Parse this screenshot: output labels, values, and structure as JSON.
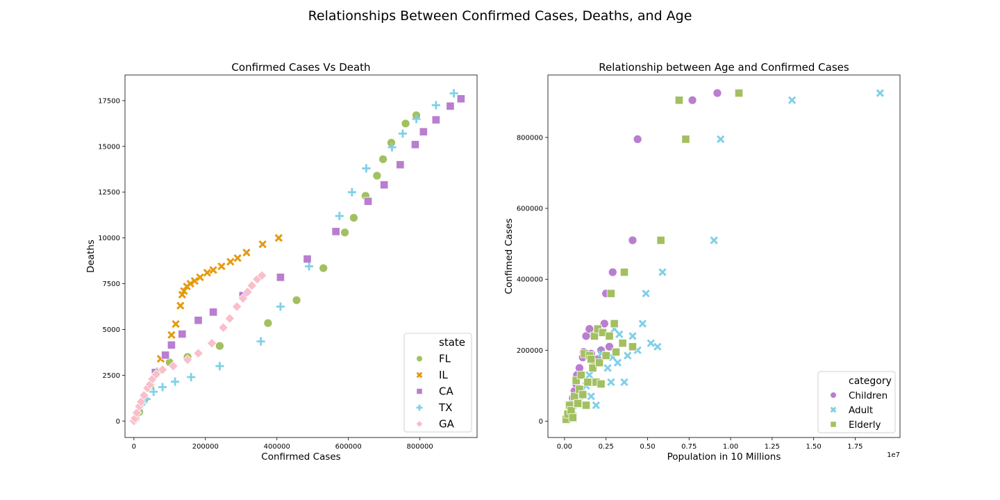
{
  "suptitle": "Relationships Between Confirmed Cases, Deaths, and Age",
  "chart_data": [
    {
      "type": "scatter",
      "title": "Confirmed Cases Vs Death",
      "xlabel": "Confirmed Cases",
      "ylabel": "Deaths",
      "xlim": [
        -25000,
        960000
      ],
      "ylim": [
        -900,
        18900
      ],
      "xticks": [
        0,
        200000,
        400000,
        600000,
        800000
      ],
      "yticks": [
        0,
        2500,
        5000,
        7500,
        10000,
        12500,
        15000,
        17500
      ],
      "grid": false,
      "legend": {
        "title": "state",
        "placement": "bottom-right"
      },
      "series": [
        {
          "name": "FL",
          "marker": "circle",
          "color": "#a3c061",
          "points": [
            [
              5000,
              150
            ],
            [
              15000,
              500
            ],
            [
              30000,
              1200
            ],
            [
              45000,
              1900
            ],
            [
              65000,
              2700
            ],
            [
              100000,
              3200
            ],
            [
              150000,
              3500
            ],
            [
              240000,
              4100
            ],
            [
              375000,
              5350
            ],
            [
              455000,
              6600
            ],
            [
              530000,
              8350
            ],
            [
              590000,
              10300
            ],
            [
              615000,
              11100
            ],
            [
              648000,
              12300
            ],
            [
              680000,
              13400
            ],
            [
              697000,
              14300
            ],
            [
              720000,
              15200
            ],
            [
              760000,
              16250
            ],
            [
              790000,
              16700
            ]
          ]
        },
        {
          "name": "IL",
          "marker": "x",
          "color": "#e5990f",
          "points": [
            [
              75000,
              3400
            ],
            [
              105000,
              4700
            ],
            [
              117000,
              5300
            ],
            [
              130000,
              6300
            ],
            [
              135000,
              6900
            ],
            [
              140000,
              7100
            ],
            [
              148000,
              7350
            ],
            [
              158000,
              7500
            ],
            [
              170000,
              7650
            ],
            [
              185000,
              7850
            ],
            [
              205000,
              8100
            ],
            [
              222000,
              8250
            ],
            [
              245000,
              8450
            ],
            [
              270000,
              8700
            ],
            [
              290000,
              8900
            ],
            [
              315000,
              9200
            ],
            [
              360000,
              9650
            ],
            [
              405000,
              10000
            ]
          ]
        },
        {
          "name": "CA",
          "marker": "square",
          "color": "#b97ecf",
          "points": [
            [
              60000,
              2650
            ],
            [
              88000,
              3600
            ],
            [
              105000,
              4150
            ],
            [
              135000,
              4750
            ],
            [
              180000,
              5500
            ],
            [
              222000,
              5950
            ],
            [
              305000,
              6850
            ],
            [
              410000,
              7850
            ],
            [
              485000,
              8850
            ],
            [
              565000,
              10350
            ],
            [
              655000,
              12000
            ],
            [
              700000,
              12900
            ],
            [
              745000,
              14000
            ],
            [
              787000,
              15100
            ],
            [
              810000,
              15800
            ],
            [
              845000,
              16450
            ],
            [
              885000,
              17200
            ],
            [
              915000,
              17600
            ]
          ]
        },
        {
          "name": "TX",
          "marker": "plus",
          "color": "#7fd0e8",
          "points": [
            [
              5000,
              150
            ],
            [
              12000,
              500
            ],
            [
              20000,
              900
            ],
            [
              35000,
              1200
            ],
            [
              55000,
              1600
            ],
            [
              80000,
              1850
            ],
            [
              115000,
              2150
            ],
            [
              160000,
              2400
            ],
            [
              240000,
              3000
            ],
            [
              355000,
              4350
            ],
            [
              410000,
              6250
            ],
            [
              490000,
              8450
            ],
            [
              575000,
              11200
            ],
            [
              610000,
              12500
            ],
            [
              650000,
              13800
            ],
            [
              722000,
              14950
            ],
            [
              752000,
              15700
            ],
            [
              790000,
              16500
            ],
            [
              845000,
              17250
            ],
            [
              895000,
              17900
            ]
          ]
        },
        {
          "name": "GA",
          "marker": "diamond",
          "color": "#f9bfca",
          "points": [
            [
              0,
              0
            ],
            [
              3000,
              150
            ],
            [
              8000,
              450
            ],
            [
              15000,
              800
            ],
            [
              20000,
              1050
            ],
            [
              28000,
              1400
            ],
            [
              38000,
              1800
            ],
            [
              45000,
              2000
            ],
            [
              52000,
              2300
            ],
            [
              62000,
              2550
            ],
            [
              80000,
              2800
            ],
            [
              110000,
              3000
            ],
            [
              150000,
              3350
            ],
            [
              180000,
              3700
            ],
            [
              218000,
              4250
            ],
            [
              250000,
              5100
            ],
            [
              268000,
              5600
            ],
            [
              288000,
              6250
            ],
            [
              305000,
              6700
            ],
            [
              318000,
              7050
            ],
            [
              330000,
              7400
            ],
            [
              345000,
              7750
            ],
            [
              358000,
              7950
            ]
          ]
        }
      ]
    },
    {
      "type": "scatter",
      "title": "Relationship between Age and Confirmed Cases",
      "xlabel": "Population in 10 Millions",
      "ylabel": "Confimed Cases",
      "x_offset_label": "1e7",
      "xlim": [
        -1000000,
        20200000
      ],
      "ylim": [
        -46000,
        976000
      ],
      "xticks": [
        0,
        2500000,
        5000000,
        7500000,
        10000000,
        12500000,
        15000000,
        17500000
      ],
      "xtick_labels": [
        "0.00",
        "0.25",
        "0.50",
        "0.75",
        "1.00",
        "1.25",
        "1.50",
        "1.75"
      ],
      "yticks": [
        0,
        200000,
        400000,
        600000,
        800000
      ],
      "grid": false,
      "legend": {
        "title": "category",
        "placement": "bottom-right"
      },
      "series": [
        {
          "name": "Children",
          "marker": "circle",
          "color": "#b97ecf",
          "points": [
            [
              200000,
              5000
            ],
            [
              300000,
              25000
            ],
            [
              400000,
              45000
            ],
            [
              500000,
              65000
            ],
            [
              600000,
              85000
            ],
            [
              700000,
              105000
            ],
            [
              750000,
              130000
            ],
            [
              900000,
              150000
            ],
            [
              1100000,
              180000
            ],
            [
              1150000,
              195000
            ],
            [
              1300000,
              240000
            ],
            [
              1500000,
              260000
            ],
            [
              1600000,
              190000
            ],
            [
              1800000,
              160000
            ],
            [
              2000000,
              175000
            ],
            [
              2200000,
              200000
            ],
            [
              2400000,
              275000
            ],
            [
              2500000,
              360000
            ],
            [
              2700000,
              210000
            ],
            [
              2900000,
              420000
            ],
            [
              4100000,
              510000
            ],
            [
              4400000,
              795000
            ],
            [
              7700000,
              905000
            ],
            [
              9200000,
              925000
            ]
          ]
        },
        {
          "name": "Adult",
          "marker": "x",
          "color": "#7fd0e8",
          "points": [
            [
              300000,
              10000
            ],
            [
              500000,
              30000
            ],
            [
              700000,
              50000
            ],
            [
              900000,
              70000
            ],
            [
              1100000,
              90000
            ],
            [
              1300000,
              100000
            ],
            [
              1500000,
              130000
            ],
            [
              1600000,
              70000
            ],
            [
              1900000,
              45000
            ],
            [
              2200000,
              190000
            ],
            [
              2600000,
              150000
            ],
            [
              2800000,
              110000
            ],
            [
              2900000,
              180000
            ],
            [
              3000000,
              260000
            ],
            [
              3200000,
              165000
            ],
            [
              3300000,
              245000
            ],
            [
              3600000,
              110000
            ],
            [
              3800000,
              185000
            ],
            [
              4100000,
              240000
            ],
            [
              4400000,
              200000
            ],
            [
              4700000,
              275000
            ],
            [
              4900000,
              360000
            ],
            [
              5200000,
              220000
            ],
            [
              5600000,
              210000
            ],
            [
              5900000,
              420000
            ],
            [
              9000000,
              510000
            ],
            [
              9400000,
              795000
            ],
            [
              13700000,
              905000
            ],
            [
              19000000,
              925000
            ]
          ]
        },
        {
          "name": "Elderly",
          "marker": "square",
          "color": "#a3c061",
          "points": [
            [
              100000,
              5000
            ],
            [
              200000,
              20000
            ],
            [
              300000,
              45000
            ],
            [
              400000,
              30000
            ],
            [
              500000,
              10000
            ],
            [
              600000,
              70000
            ],
            [
              700000,
              115000
            ],
            [
              800000,
              50000
            ],
            [
              900000,
              90000
            ],
            [
              1000000,
              130000
            ],
            [
              1100000,
              75000
            ],
            [
              1200000,
              190000
            ],
            [
              1300000,
              45000
            ],
            [
              1400000,
              110000
            ],
            [
              1500000,
              185000
            ],
            [
              1600000,
              175000
            ],
            [
              1700000,
              150000
            ],
            [
              1800000,
              240000
            ],
            [
              1900000,
              110000
            ],
            [
              2000000,
              260000
            ],
            [
              2100000,
              165000
            ],
            [
              2200000,
              105000
            ],
            [
              2300000,
              250000
            ],
            [
              2500000,
              185000
            ],
            [
              2700000,
              240000
            ],
            [
              2800000,
              360000
            ],
            [
              3000000,
              275000
            ],
            [
              3100000,
              195000
            ],
            [
              3500000,
              220000
            ],
            [
              3600000,
              420000
            ],
            [
              4100000,
              210000
            ],
            [
              5800000,
              510000
            ],
            [
              6900000,
              905000
            ],
            [
              7300000,
              795000
            ],
            [
              10500000,
              925000
            ]
          ]
        }
      ]
    }
  ]
}
